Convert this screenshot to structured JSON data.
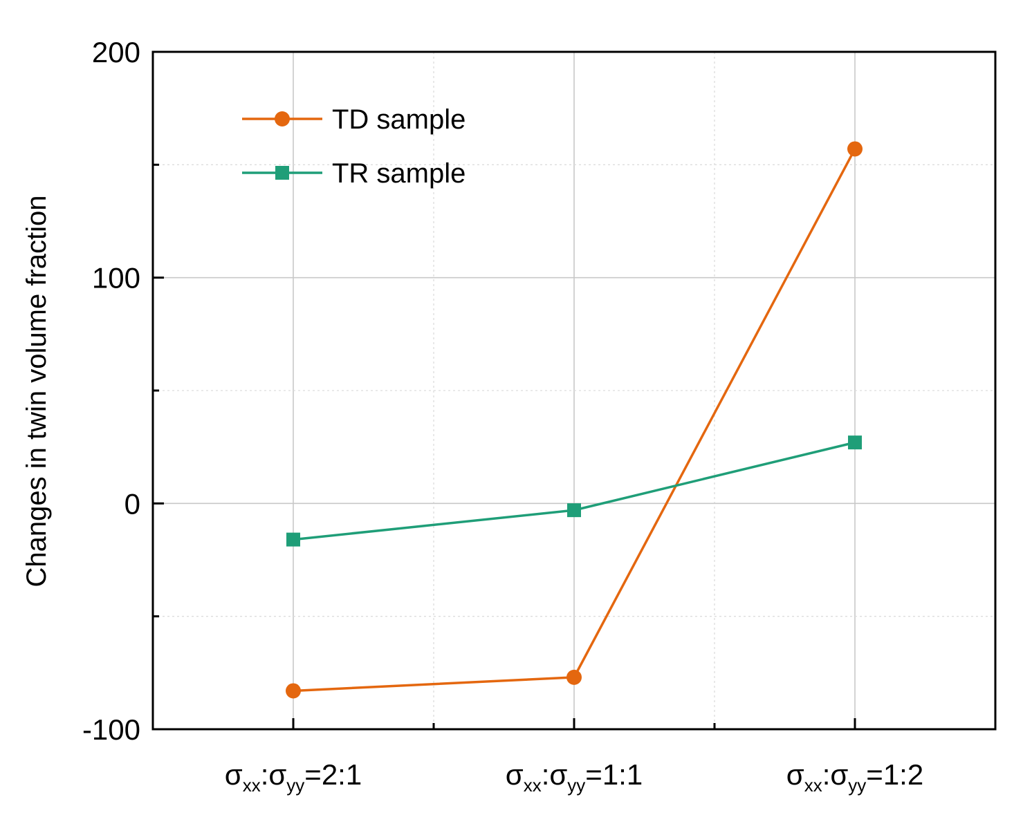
{
  "chart_data": {
    "type": "line",
    "title": "",
    "xlabel": "",
    "ylabel": "Changes in twin volume fraction",
    "ylim": [
      -100,
      200
    ],
    "yticks": [
      -100,
      0,
      100,
      200
    ],
    "categories": [
      {
        "s1": "σ",
        "sub1": "xx",
        "colon": ":",
        "s2": "σ",
        "sub2": "yy",
        "ratio": "=2:1"
      },
      {
        "s1": "σ",
        "sub1": "xx",
        "colon": ":",
        "s2": "σ",
        "sub2": "yy",
        "ratio": "=1:1"
      },
      {
        "s1": "σ",
        "sub1": "xx",
        "colon": ":",
        "s2": "σ",
        "sub2": "yy",
        "ratio": "=1:2"
      }
    ],
    "series": [
      {
        "name": "TD sample",
        "marker": "circle",
        "color": "#e4670f",
        "values": [
          -83,
          -77,
          157
        ]
      },
      {
        "name": "TR sample",
        "marker": "square",
        "color": "#1f9e78",
        "values": [
          -16,
          -3,
          27
        ]
      }
    ],
    "grid": true,
    "legend": "top-left"
  }
}
